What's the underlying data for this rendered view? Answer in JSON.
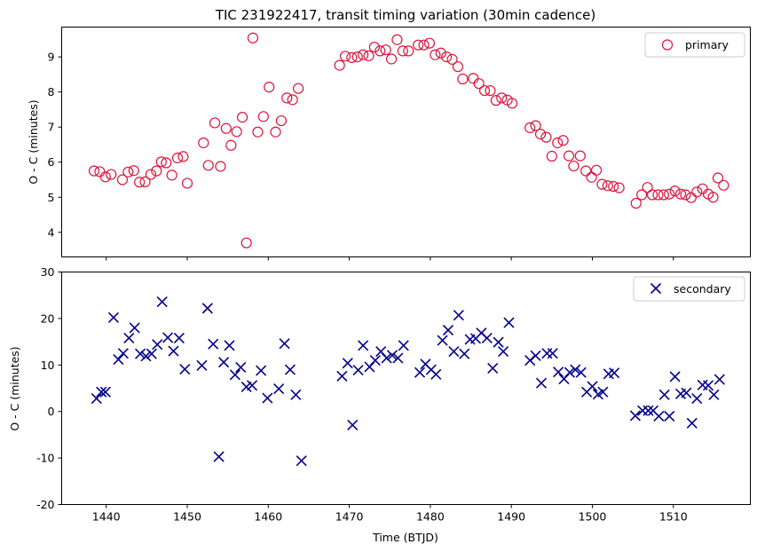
{
  "figure": {
    "title": "TIC 231922417, transit timing variation (30min cadence)",
    "xlabel": "Time (BTJD)"
  },
  "chart_data": [
    {
      "type": "scatter",
      "name": "top-panel",
      "ylabel": "O - C (minutes)",
      "xlim": [
        1434.5,
        1519.5
      ],
      "ylim": [
        3.3,
        9.85
      ],
      "xticks": [
        1440,
        1450,
        1460,
        1470,
        1480,
        1490,
        1500,
        1510
      ],
      "yticks": [
        4,
        5,
        6,
        7,
        8,
        9
      ],
      "legend": "top-right",
      "series": [
        {
          "name": "primary",
          "marker": "open-circle",
          "color": "#dc143c",
          "points": [
            [
              1438.5,
              5.75
            ],
            [
              1439.2,
              5.73
            ],
            [
              1439.9,
              5.58
            ],
            [
              1440.6,
              5.65
            ],
            [
              1442.0,
              5.5
            ],
            [
              1442.7,
              5.72
            ],
            [
              1443.4,
              5.76
            ],
            [
              1444.1,
              5.43
            ],
            [
              1444.8,
              5.44
            ],
            [
              1445.5,
              5.65
            ],
            [
              1446.2,
              5.75
            ],
            [
              1446.8,
              6.01
            ],
            [
              1447.4,
              5.98
            ],
            [
              1448.1,
              5.63
            ],
            [
              1448.8,
              6.12
            ],
            [
              1449.5,
              6.16
            ],
            [
              1450.0,
              5.4
            ],
            [
              1452.0,
              6.55
            ],
            [
              1452.6,
              5.91
            ],
            [
              1453.4,
              7.12
            ],
            [
              1454.1,
              5.88
            ],
            [
              1454.8,
              6.96
            ],
            [
              1455.4,
              6.48
            ],
            [
              1456.1,
              6.87
            ],
            [
              1456.8,
              7.28
            ],
            [
              1457.3,
              3.7
            ],
            [
              1458.1,
              9.54
            ],
            [
              1458.7,
              6.86
            ],
            [
              1459.4,
              7.3
            ],
            [
              1460.1,
              8.14
            ],
            [
              1460.9,
              6.86
            ],
            [
              1461.6,
              7.18
            ],
            [
              1462.3,
              7.83
            ],
            [
              1463.0,
              7.78
            ],
            [
              1463.7,
              8.1
            ],
            [
              1468.8,
              8.76
            ],
            [
              1469.5,
              9.02
            ],
            [
              1470.3,
              8.98
            ],
            [
              1471.0,
              9.0
            ],
            [
              1471.7,
              9.06
            ],
            [
              1472.4,
              9.03
            ],
            [
              1473.1,
              9.28
            ],
            [
              1473.8,
              9.17
            ],
            [
              1474.5,
              9.2
            ],
            [
              1475.2,
              8.94
            ],
            [
              1475.9,
              9.49
            ],
            [
              1476.6,
              9.17
            ],
            [
              1477.3,
              9.17
            ],
            [
              1478.5,
              9.34
            ],
            [
              1479.2,
              9.34
            ],
            [
              1479.9,
              9.39
            ],
            [
              1480.6,
              9.06
            ],
            [
              1481.3,
              9.11
            ],
            [
              1482.0,
              9.0
            ],
            [
              1482.7,
              8.93
            ],
            [
              1483.4,
              8.72
            ],
            [
              1484.0,
              8.37
            ],
            [
              1485.3,
              8.39
            ],
            [
              1486.0,
              8.24
            ],
            [
              1486.7,
              8.04
            ],
            [
              1487.4,
              8.04
            ],
            [
              1488.1,
              7.76
            ],
            [
              1488.8,
              7.83
            ],
            [
              1489.5,
              7.77
            ],
            [
              1490.1,
              7.68
            ],
            [
              1492.3,
              6.98
            ],
            [
              1493.0,
              7.04
            ],
            [
              1493.6,
              6.8
            ],
            [
              1494.3,
              6.71
            ],
            [
              1495.0,
              6.17
            ],
            [
              1495.7,
              6.55
            ],
            [
              1496.4,
              6.62
            ],
            [
              1497.1,
              6.18
            ],
            [
              1497.7,
              5.89
            ],
            [
              1498.5,
              6.18
            ],
            [
              1499.2,
              5.75
            ],
            [
              1499.9,
              5.57
            ],
            [
              1500.5,
              5.77
            ],
            [
              1501.2,
              5.37
            ],
            [
              1501.9,
              5.33
            ],
            [
              1502.6,
              5.31
            ],
            [
              1503.3,
              5.27
            ],
            [
              1505.4,
              4.83
            ],
            [
              1506.1,
              5.07
            ],
            [
              1506.8,
              5.28
            ],
            [
              1507.4,
              5.07
            ],
            [
              1508.1,
              5.07
            ],
            [
              1508.8,
              5.07
            ],
            [
              1509.5,
              5.09
            ],
            [
              1510.2,
              5.18
            ],
            [
              1510.9,
              5.09
            ],
            [
              1511.5,
              5.07
            ],
            [
              1512.2,
              4.99
            ],
            [
              1512.9,
              5.15
            ],
            [
              1513.6,
              5.24
            ],
            [
              1514.3,
              5.09
            ],
            [
              1514.9,
              5.0
            ],
            [
              1515.5,
              5.55
            ],
            [
              1516.2,
              5.34
            ]
          ]
        }
      ]
    },
    {
      "type": "scatter",
      "name": "bottom-panel",
      "ylabel": "O - C (minutes)",
      "xlim": [
        1434.5,
        1519.5
      ],
      "ylim": [
        -20,
        30
      ],
      "xticks": [
        1440,
        1450,
        1460,
        1470,
        1480,
        1490,
        1500,
        1510
      ],
      "xticklabels": [
        "1440",
        "1450",
        "1460",
        "1470",
        "1480",
        "1490",
        "1500",
        "1510"
      ],
      "yticks": [
        -20,
        -10,
        0,
        10,
        20,
        30
      ],
      "legend": "top-right",
      "series": [
        {
          "name": "secondary",
          "marker": "x",
          "color": "#00008b",
          "points": [
            [
              1438.8,
              2.8
            ],
            [
              1439.4,
              4.2
            ],
            [
              1439.9,
              4.2
            ],
            [
              1440.9,
              20.2
            ],
            [
              1441.5,
              11.2
            ],
            [
              1442.1,
              12.5
            ],
            [
              1442.8,
              15.8
            ],
            [
              1443.5,
              18.0
            ],
            [
              1444.2,
              12.4
            ],
            [
              1444.9,
              11.9
            ],
            [
              1445.6,
              12.4
            ],
            [
              1446.3,
              14.4
            ],
            [
              1446.9,
              23.6
            ],
            [
              1447.6,
              15.9
            ],
            [
              1448.3,
              13.0
            ],
            [
              1449.0,
              15.8
            ],
            [
              1449.7,
              9.1
            ],
            [
              1451.8,
              9.9
            ],
            [
              1452.5,
              22.2
            ],
            [
              1453.2,
              14.5
            ],
            [
              1453.9,
              -9.7
            ],
            [
              1454.5,
              10.6
            ],
            [
              1455.2,
              14.2
            ],
            [
              1455.9,
              7.9
            ],
            [
              1456.6,
              9.5
            ],
            [
              1457.3,
              5.3
            ],
            [
              1458.0,
              5.6
            ],
            [
              1459.1,
              8.8
            ],
            [
              1459.9,
              2.9
            ],
            [
              1461.3,
              4.9
            ],
            [
              1462.0,
              14.6
            ],
            [
              1462.7,
              9.0
            ],
            [
              1463.4,
              3.6
            ],
            [
              1464.1,
              -10.6
            ],
            [
              1469.1,
              7.6
            ],
            [
              1469.8,
              10.4
            ],
            [
              1470.4,
              -2.9
            ],
            [
              1471.1,
              8.9
            ],
            [
              1471.7,
              14.2
            ],
            [
              1472.5,
              9.6
            ],
            [
              1473.2,
              11.0
            ],
            [
              1473.9,
              12.9
            ],
            [
              1474.6,
              11.5
            ],
            [
              1475.3,
              12.1
            ],
            [
              1476.0,
              11.5
            ],
            [
              1476.7,
              14.2
            ],
            [
              1478.7,
              8.4
            ],
            [
              1479.4,
              10.2
            ],
            [
              1480.1,
              9.0
            ],
            [
              1480.7,
              8.0
            ],
            [
              1481.5,
              15.3
            ],
            [
              1482.2,
              17.5
            ],
            [
              1482.9,
              12.9
            ],
            [
              1483.5,
              20.7
            ],
            [
              1484.2,
              12.4
            ],
            [
              1484.9,
              15.5
            ],
            [
              1485.6,
              15.7
            ],
            [
              1486.3,
              16.9
            ],
            [
              1487.0,
              15.8
            ],
            [
              1487.7,
              9.3
            ],
            [
              1488.4,
              14.9
            ],
            [
              1489.0,
              12.9
            ],
            [
              1489.7,
              19.1
            ],
            [
              1492.3,
              11.0
            ],
            [
              1493.0,
              12.0
            ],
            [
              1493.7,
              6.1
            ],
            [
              1494.4,
              12.5
            ],
            [
              1495.1,
              12.5
            ],
            [
              1495.8,
              8.5
            ],
            [
              1496.5,
              7.0
            ],
            [
              1497.2,
              8.4
            ],
            [
              1497.9,
              9.0
            ],
            [
              1498.6,
              8.4
            ],
            [
              1499.3,
              4.2
            ],
            [
              1500.0,
              5.4
            ],
            [
              1500.7,
              3.7
            ],
            [
              1501.3,
              4.2
            ],
            [
              1502.0,
              8.1
            ],
            [
              1502.7,
              8.3
            ],
            [
              1505.3,
              -0.9
            ],
            [
              1506.2,
              0.2
            ],
            [
              1506.9,
              0.2
            ],
            [
              1507.5,
              0.2
            ],
            [
              1508.2,
              -1.0
            ],
            [
              1508.9,
              3.6
            ],
            [
              1509.5,
              -1.0
            ],
            [
              1510.2,
              7.5
            ],
            [
              1510.9,
              3.8
            ],
            [
              1511.6,
              4.0
            ],
            [
              1512.3,
              -2.5
            ],
            [
              1512.9,
              2.8
            ],
            [
              1513.6,
              5.7
            ],
            [
              1514.3,
              5.6
            ],
            [
              1515.0,
              3.6
            ],
            [
              1515.7,
              6.9
            ]
          ]
        }
      ]
    }
  ]
}
